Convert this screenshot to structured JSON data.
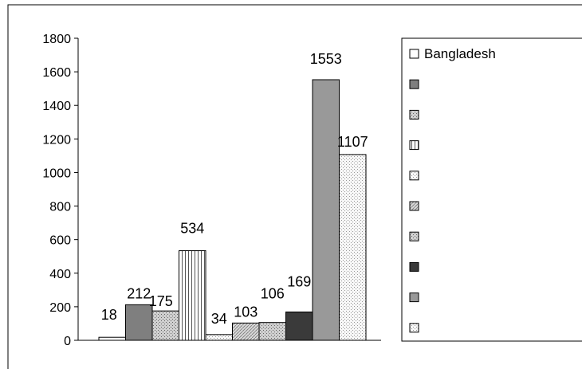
{
  "chart_data": {
    "type": "bar",
    "title": "",
    "xlabel": "",
    "ylabel": "",
    "ylim": [
      0,
      1800
    ],
    "yticks": [
      "0",
      "200",
      "400",
      "600",
      "800",
      "1000",
      "1200",
      "1400",
      "1600",
      "1800"
    ],
    "grid": false,
    "legend_position": "right",
    "series": [
      {
        "name": "Bangladesh",
        "value": 18,
        "label": "18",
        "fill": "#ffffff",
        "pattern": "none"
      },
      {
        "name": "",
        "value": 212,
        "label": "212",
        "fill": "#7f7f7f",
        "pattern": "none"
      },
      {
        "name": "",
        "value": 175,
        "label": "175",
        "fill": "#bfbfbf",
        "pattern": "dots"
      },
      {
        "name": "",
        "value": 534,
        "label": "534",
        "fill": "#ffffff",
        "pattern": "vlines"
      },
      {
        "name": "",
        "value": 34,
        "label": "34",
        "fill": "#eeeeee",
        "pattern": "dots-light"
      },
      {
        "name": "",
        "value": 103,
        "label": "103",
        "fill": "#c8c8c8",
        "pattern": "diag"
      },
      {
        "name": "",
        "value": 106,
        "label": "106",
        "fill": "#c8c8c8",
        "pattern": "dots"
      },
      {
        "name": "",
        "value": 169,
        "label": "169",
        "fill": "#3a3a3a",
        "pattern": "none"
      },
      {
        "name": "",
        "value": 1553,
        "label": "1553",
        "fill": "#999999",
        "pattern": "none"
      },
      {
        "name": "",
        "value": 1107,
        "label": "1107",
        "fill": "#f4f4f4",
        "pattern": "dots-light"
      }
    ]
  }
}
